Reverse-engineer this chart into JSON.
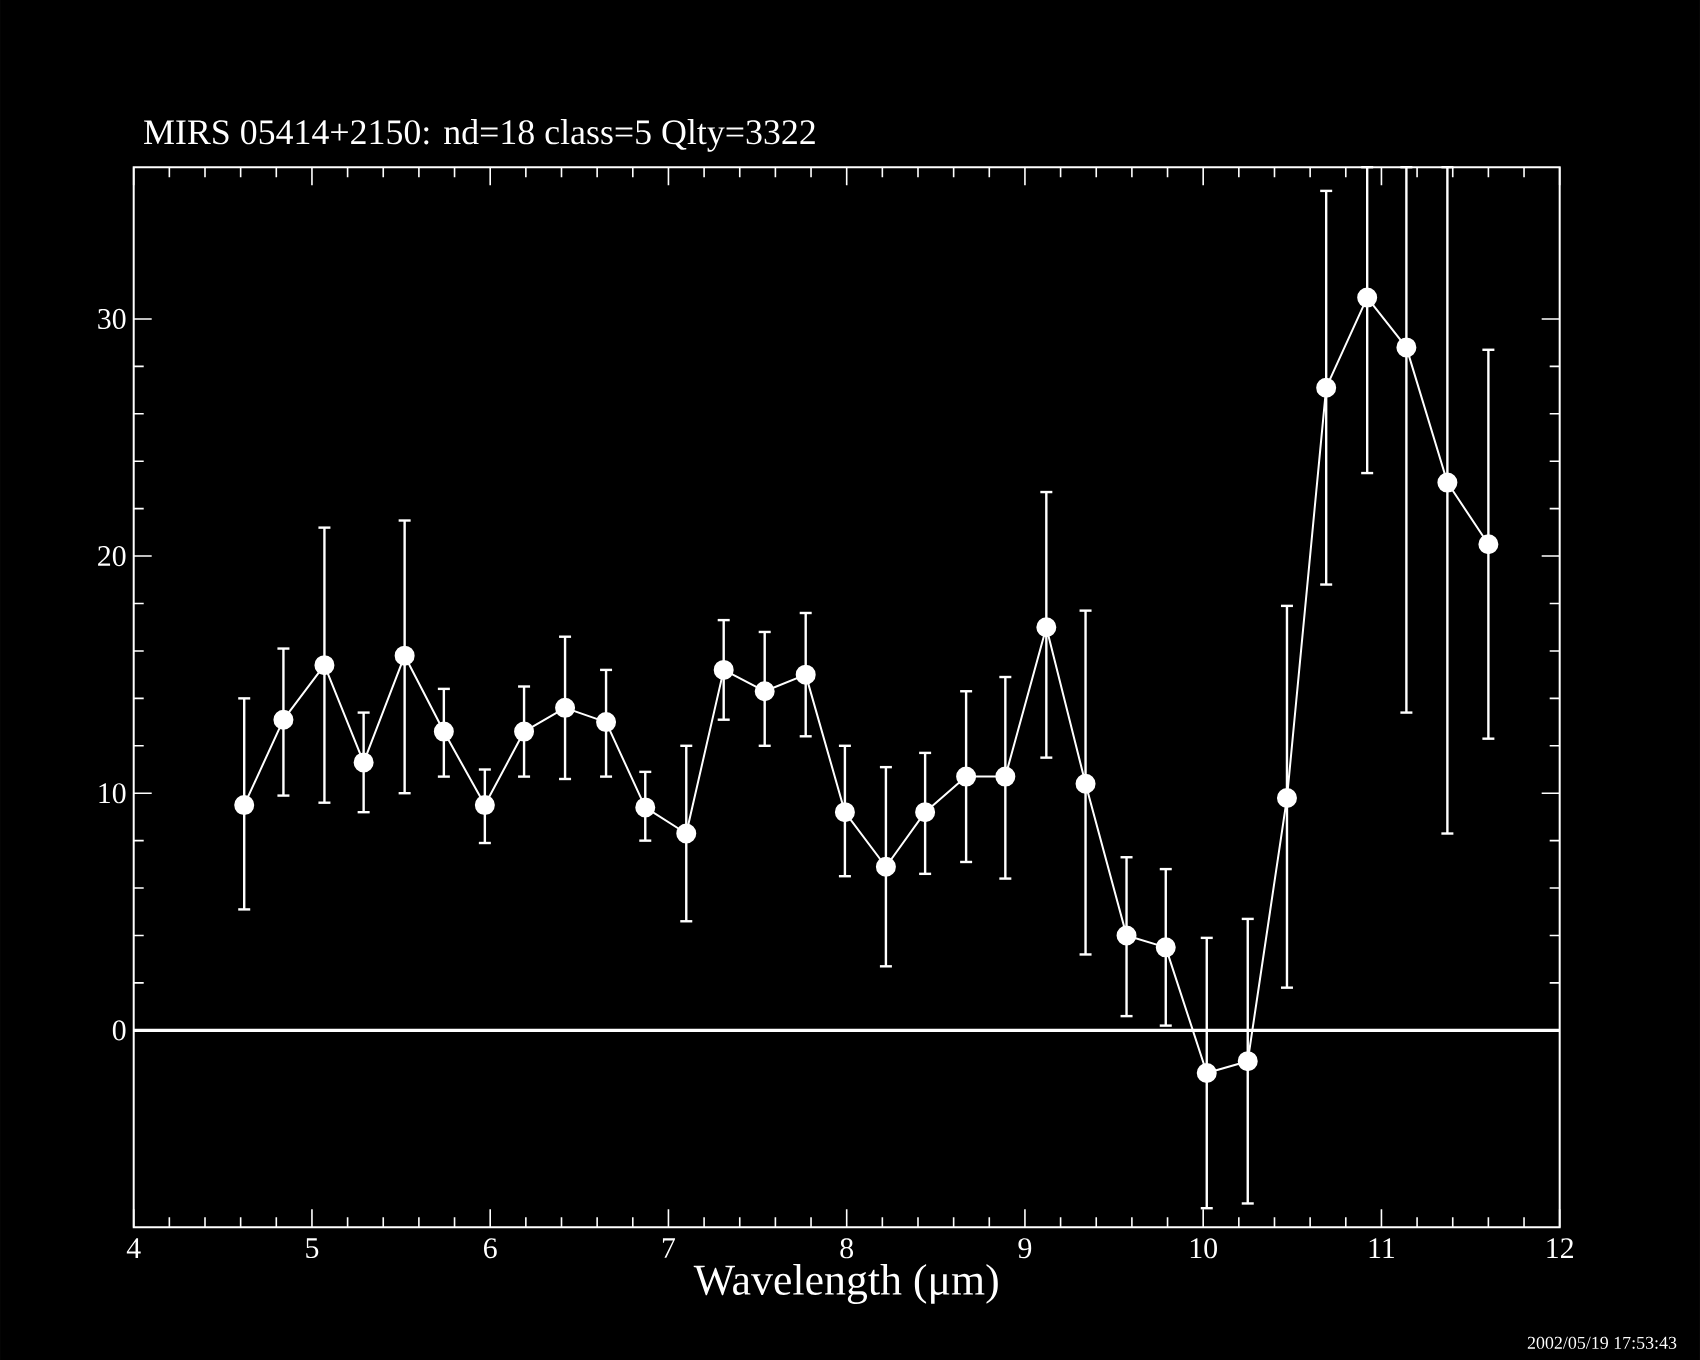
{
  "chart_data": {
    "type": "line",
    "title": "MIRS 05414+2150:     nd=18    class=5    Qlty=3322",
    "xlabel": "Wavelength (μm)",
    "annotations": [
      "2002/05/19 17:53:43"
    ],
    "x": [
      4.62,
      4.84,
      5.07,
      5.29,
      5.52,
      5.74,
      5.97,
      6.19,
      6.42,
      6.65,
      6.87,
      7.1,
      7.31,
      7.54,
      7.77,
      7.99,
      8.22,
      8.44,
      8.67,
      8.89,
      9.12,
      9.34,
      9.57,
      9.79,
      10.02,
      10.25,
      10.47,
      10.69,
      10.92,
      11.14,
      11.37,
      11.6
    ],
    "values": [
      9.5,
      13.1,
      15.4,
      11.3,
      15.8,
      12.6,
      9.5,
      12.6,
      13.6,
      13.0,
      9.4,
      8.3,
      15.2,
      14.3,
      15.0,
      9.2,
      6.9,
      9.2,
      10.7,
      10.7,
      17.0,
      10.4,
      4.0,
      3.5,
      -1.8,
      -1.3,
      9.8,
      27.1,
      30.9,
      28.8,
      23.1,
      20.5
    ],
    "errors": [
      [
        5.1,
        14.0
      ],
      [
        9.9,
        16.1
      ],
      [
        9.6,
        21.2
      ],
      [
        9.2,
        13.4
      ],
      [
        10.0,
        21.5
      ],
      [
        10.7,
        14.4
      ],
      [
        7.9,
        11.0
      ],
      [
        10.7,
        14.5
      ],
      [
        10.6,
        16.6
      ],
      [
        10.7,
        15.2
      ],
      [
        8.0,
        10.9
      ],
      [
        4.6,
        12.0
      ],
      [
        13.1,
        17.3
      ],
      [
        12.0,
        16.8
      ],
      [
        12.4,
        17.6
      ],
      [
        6.5,
        12.0
      ],
      [
        2.7,
        11.1
      ],
      [
        6.6,
        11.7
      ],
      [
        7.1,
        14.3
      ],
      [
        6.4,
        14.9
      ],
      [
        11.5,
        22.7
      ],
      [
        3.2,
        17.7
      ],
      [
        0.6,
        7.3
      ],
      [
        0.2,
        6.8
      ],
      [
        -7.5,
        3.9
      ],
      [
        -7.3,
        4.7
      ],
      [
        1.8,
        17.9
      ],
      [
        18.8,
        35.4
      ],
      [
        23.5,
        36.4
      ],
      [
        13.4,
        36.4
      ],
      [
        8.3,
        36.4
      ],
      [
        12.3,
        28.7
      ]
    ],
    "color": "#ffffff",
    "marker": "circle",
    "line_style": "solid",
    "xlim": [
      4,
      12
    ],
    "ylim": [
      -8.3,
      36.4
    ],
    "xticks": [
      4,
      5,
      6,
      7,
      8,
      9,
      10,
      11,
      12
    ],
    "yticks": [
      0,
      10,
      20,
      30
    ],
    "ref_lines": [
      {
        "axis": "y",
        "value": 0,
        "color": "#ffffff",
        "line_style": "solid"
      }
    ]
  }
}
